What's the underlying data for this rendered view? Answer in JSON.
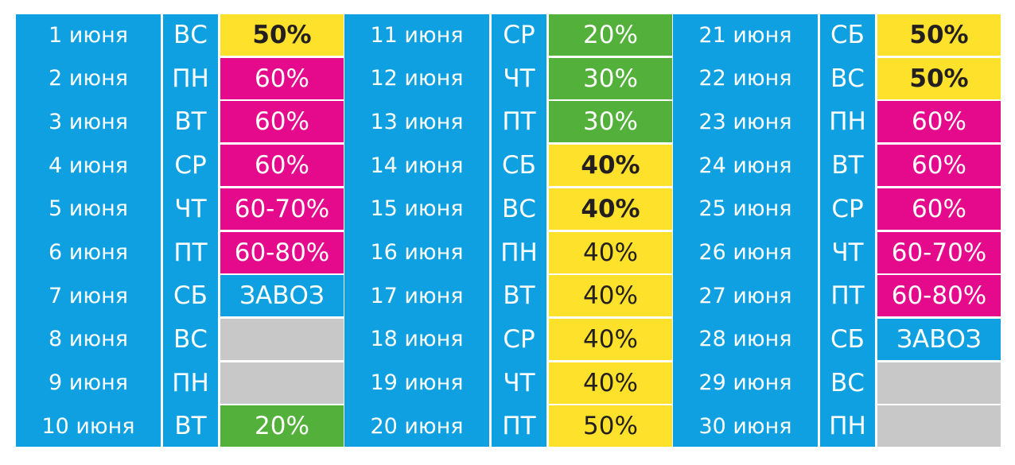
{
  "columns": [
    {
      "rows": [
        {
          "date": "1 июня",
          "dow": "ВС",
          "value": "50%",
          "color": "yellow",
          "bold": true
        },
        {
          "date": "2 июня",
          "dow": "ПН",
          "value": "60%",
          "color": "pink",
          "bold": false
        },
        {
          "date": "3 июня",
          "dow": "ВТ",
          "value": "60%",
          "color": "pink",
          "bold": false
        },
        {
          "date": "4 июня",
          "dow": "СР",
          "value": "60%",
          "color": "pink",
          "bold": false
        },
        {
          "date": "5 июня",
          "dow": "ЧТ",
          "value": "60-70%",
          "color": "pink",
          "bold": false
        },
        {
          "date": "6 июня",
          "dow": "ПТ",
          "value": "60-80%",
          "color": "pink",
          "bold": false
        },
        {
          "date": "7 июня",
          "dow": "СБ",
          "value": "ЗАВОЗ",
          "color": "blue",
          "bold": false
        },
        {
          "date": "8 июня",
          "dow": "ВС",
          "value": "",
          "color": "grey",
          "bold": false
        },
        {
          "date": "9 июня",
          "dow": "ПН",
          "value": "",
          "color": "grey",
          "bold": false
        },
        {
          "date": "10 июня",
          "dow": "ВТ",
          "value": "20%",
          "color": "green",
          "bold": false
        }
      ]
    },
    {
      "rows": [
        {
          "date": "11 июня",
          "dow": "СР",
          "value": "20%",
          "color": "green",
          "bold": false
        },
        {
          "date": "12 июня",
          "dow": "ЧТ",
          "value": "30%",
          "color": "green",
          "bold": false
        },
        {
          "date": "13 июня",
          "dow": "ПТ",
          "value": "30%",
          "color": "green",
          "bold": false
        },
        {
          "date": "14 июня",
          "dow": "СБ",
          "value": "40%",
          "color": "yellow",
          "bold": true
        },
        {
          "date": "15 июня",
          "dow": "ВС",
          "value": "40%",
          "color": "yellow",
          "bold": true
        },
        {
          "date": "16 июня",
          "dow": "ПН",
          "value": "40%",
          "color": "yellow",
          "bold": false
        },
        {
          "date": "17 июня",
          "dow": "ВТ",
          "value": "40%",
          "color": "yellow",
          "bold": false
        },
        {
          "date": "18 июня",
          "dow": "СР",
          "value": "40%",
          "color": "yellow",
          "bold": false
        },
        {
          "date": "19 июня",
          "dow": "ЧТ",
          "value": "40%",
          "color": "yellow",
          "bold": false
        },
        {
          "date": "20 июня",
          "dow": "ПТ",
          "value": "50%",
          "color": "yellow",
          "bold": false
        }
      ]
    },
    {
      "rows": [
        {
          "date": "21 июня",
          "dow": "СБ",
          "value": "50%",
          "color": "yellow",
          "bold": true
        },
        {
          "date": "22 июня",
          "dow": "ВС",
          "value": "50%",
          "color": "yellow",
          "bold": true
        },
        {
          "date": "23 июня",
          "dow": "ПН",
          "value": "60%",
          "color": "pink",
          "bold": false
        },
        {
          "date": "24 июня",
          "dow": "ВТ",
          "value": "60%",
          "color": "pink",
          "bold": false
        },
        {
          "date": "25 июня",
          "dow": "СР",
          "value": "60%",
          "color": "pink",
          "bold": false
        },
        {
          "date": "26 июня",
          "dow": "ЧТ",
          "value": "60-70%",
          "color": "pink",
          "bold": false
        },
        {
          "date": "27 июня",
          "dow": "ПТ",
          "value": "60-80%",
          "color": "pink",
          "bold": false
        },
        {
          "date": "28 июня",
          "dow": "СБ",
          "value": "ЗАВОЗ",
          "color": "blue",
          "bold": false
        },
        {
          "date": "29 июня",
          "dow": "ВС",
          "value": "",
          "color": "grey",
          "bold": false
        },
        {
          "date": "30 июня",
          "dow": "ПН",
          "value": "",
          "color": "grey",
          "bold": false
        }
      ]
    }
  ],
  "colors": {
    "blue": "#0ea0e0",
    "yellow": "#fde12a",
    "pink": "#e5098b",
    "green": "#52b03b",
    "grey": "#c8c8c8"
  }
}
